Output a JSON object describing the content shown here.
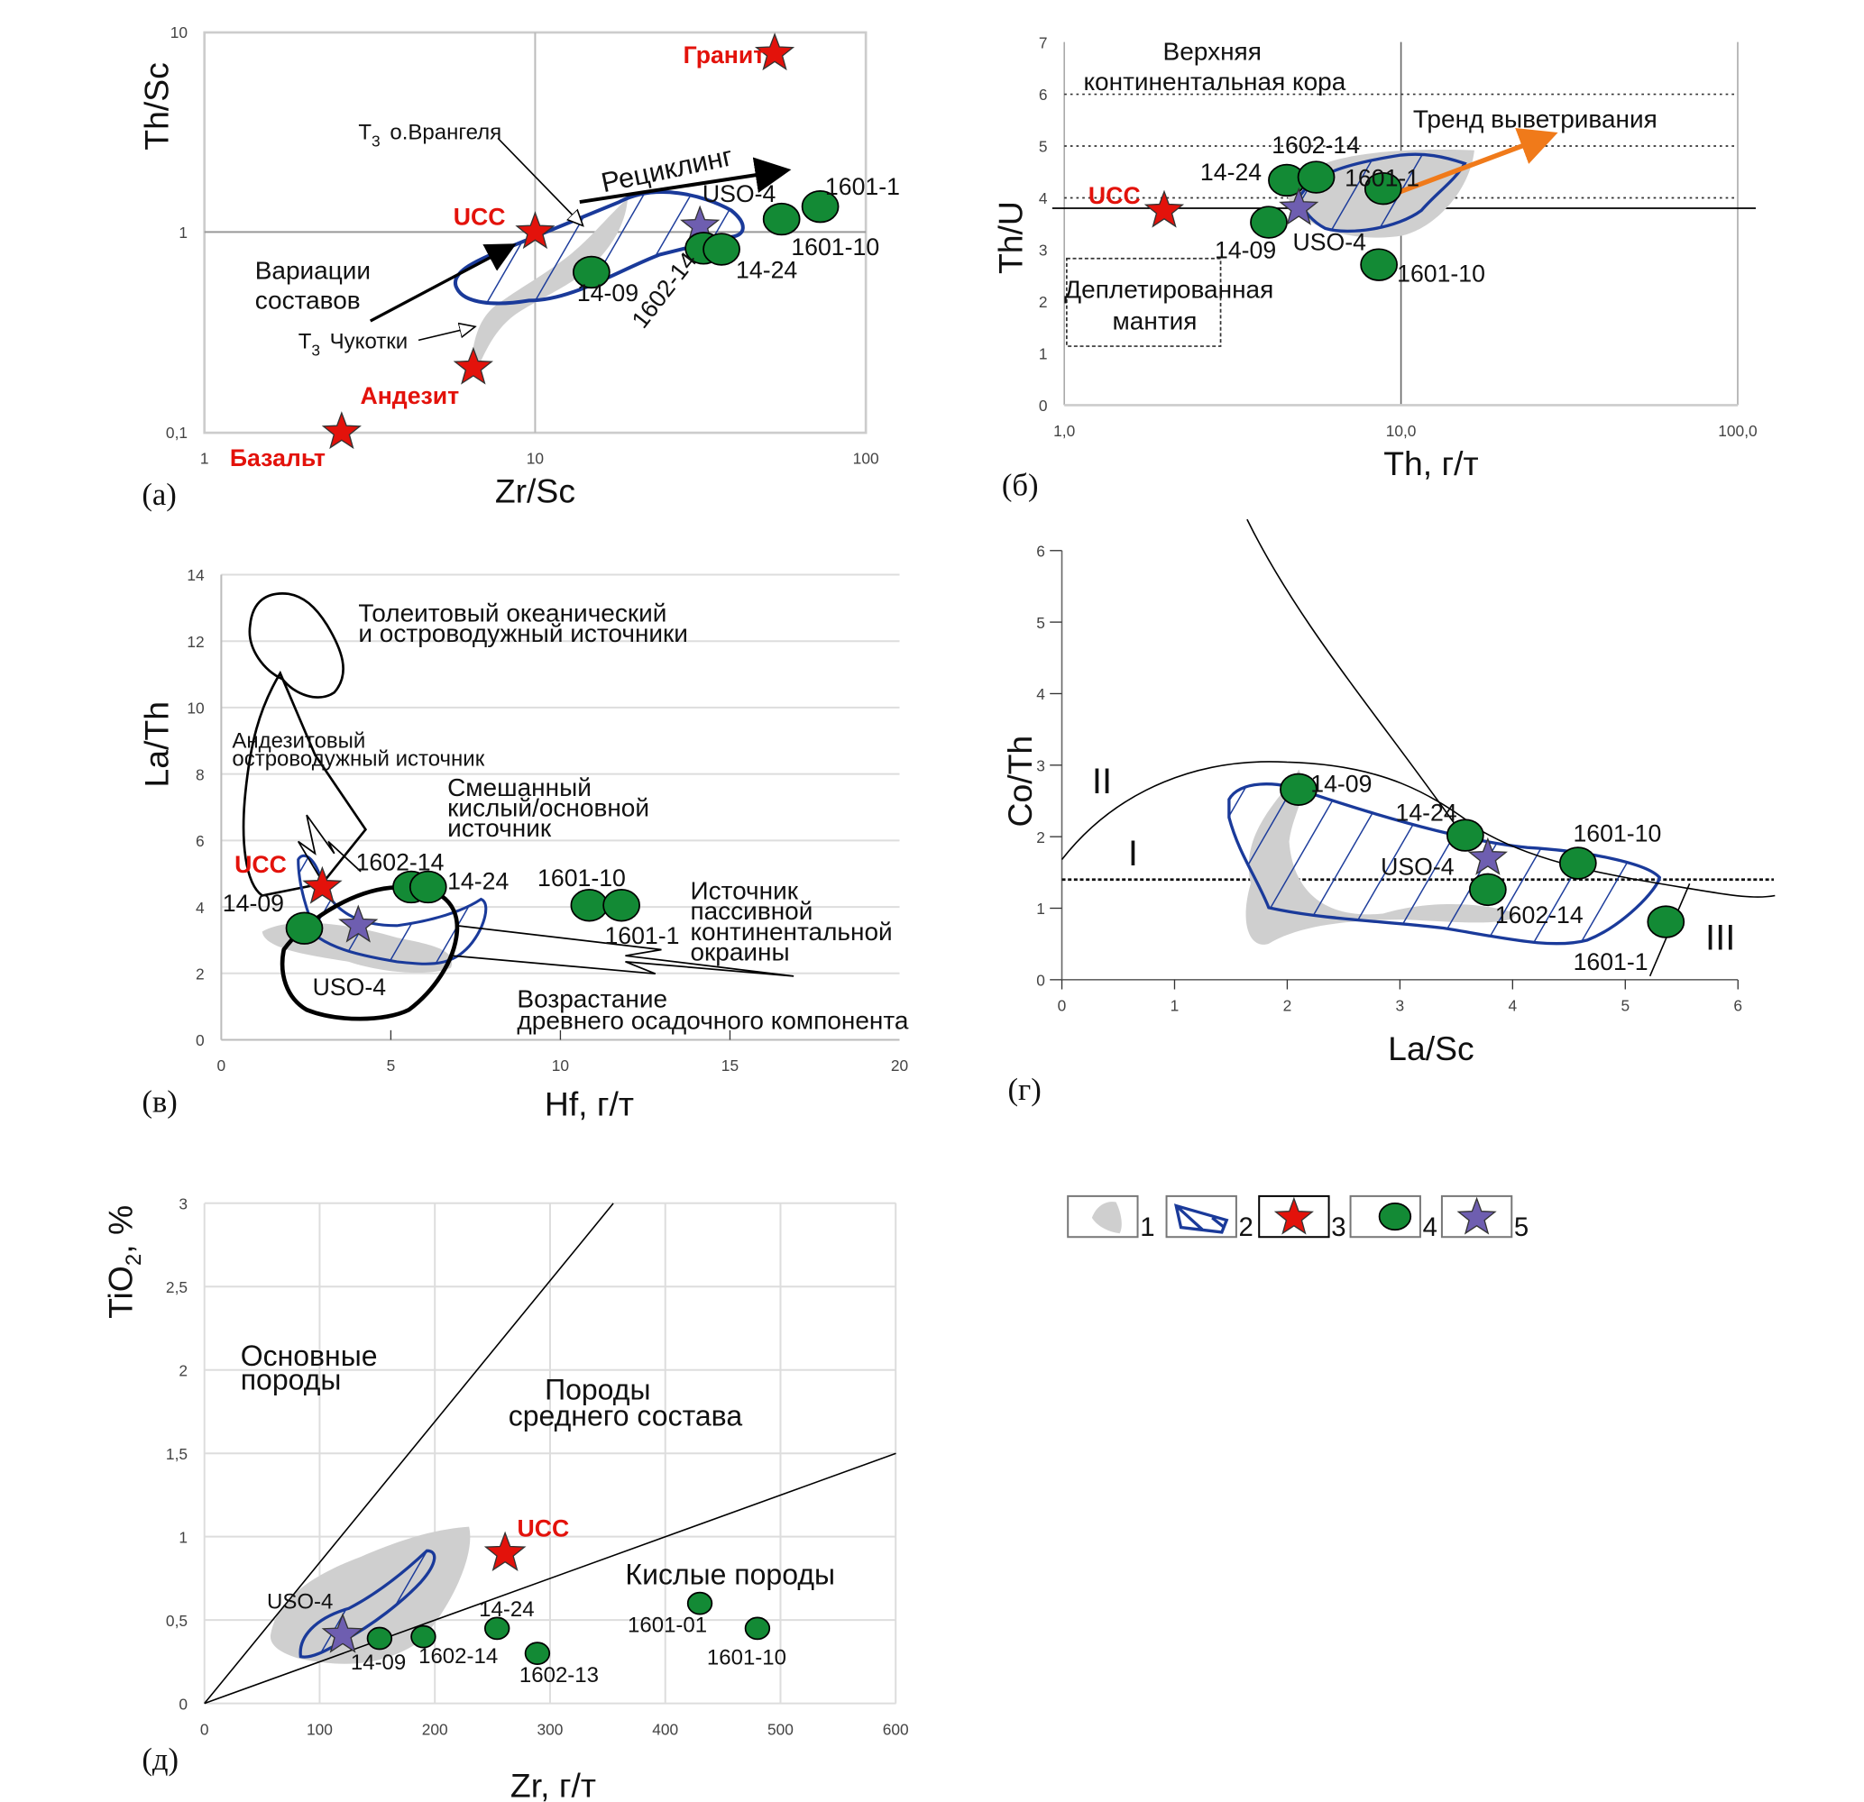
{
  "colors": {
    "sample": "#138a35",
    "reference": "#e3120b",
    "uso": "#6e5eb0",
    "field_gray": "#cfcfcf",
    "field_blue": "#1a3a9a",
    "trend": "#f07a1a"
  },
  "legend": {
    "items": [
      {
        "num": "1",
        "symbol": "gray-field"
      },
      {
        "num": "2",
        "symbol": "blue-hatched-field"
      },
      {
        "num": "3",
        "symbol": "red-star"
      },
      {
        "num": "4",
        "symbol": "green-circle"
      },
      {
        "num": "5",
        "symbol": "purple-star"
      }
    ]
  },
  "chart_data": [
    {
      "type": "scatter",
      "panel": "(а)",
      "xlabel": "Zr/Sc",
      "ylabel": "Th/Sc",
      "xscale": "log",
      "yscale": "log",
      "xlim": [
        1,
        100
      ],
      "ylim": [
        0.1,
        10
      ],
      "grid": "major lines at 10 and 1",
      "xticks": [
        {
          "v": 1,
          "label": "1"
        },
        {
          "v": 10,
          "label": "10"
        },
        {
          "v": 100,
          "label": "100"
        }
      ],
      "yticks": [
        {
          "v": 0.1,
          "label": "0,1"
        },
        {
          "v": 1,
          "label": "1"
        },
        {
          "v": 10,
          "label": "10"
        }
      ],
      "points": [
        {
          "label": "Гранит",
          "kind": "reference",
          "x": 53,
          "y": 7.8
        },
        {
          "label": "UCC",
          "kind": "reference",
          "x": 10,
          "y": 1.0
        },
        {
          "label": "Андезит",
          "kind": "reference",
          "x": 6.5,
          "y": 0.21
        },
        {
          "label": "Базальт",
          "kind": "reference",
          "x": 2.6,
          "y": 0.1
        },
        {
          "label": "USO-4",
          "kind": "uso",
          "x": 31.5,
          "y": 1.07
        },
        {
          "label": "14-09",
          "kind": "sample",
          "x": 14.8,
          "y": 0.63
        },
        {
          "label": "1602-14",
          "kind": "sample",
          "x": 32.3,
          "y": 0.83
        },
        {
          "label": "14-24",
          "kind": "sample",
          "x": 36.6,
          "y": 0.82
        },
        {
          "label": "1601-10",
          "kind": "sample",
          "x": 55.6,
          "y": 1.16
        },
        {
          "label": "1601-1",
          "kind": "sample",
          "x": 72.8,
          "y": 1.34
        }
      ],
      "annotations": {
        "wrangel_t": "T",
        "wrangel_sub": "3",
        "wrangel": "о.Врангеля",
        "chukotka_t": "T",
        "chukotka_sub": "3",
        "chukotka": "Чукотки",
        "recycling": "Рециклинг",
        "variations_1": "Вариации",
        "variations_2": "составов"
      }
    },
    {
      "type": "scatter",
      "panel": "(б)",
      "xlabel": "Th, г/т",
      "ylabel": "Th/U",
      "xscale": "log",
      "yscale": "linear",
      "xlim": [
        1,
        100
      ],
      "ylim": [
        0,
        7
      ],
      "grid": "vertical lines at 1, 10, 100; dotted at 4, 5, 6; solid reference at 3.8",
      "reference_line": 3.8,
      "xticks": [
        {
          "v": 1,
          "label": "1,0"
        },
        {
          "v": 10,
          "label": "10,0"
        },
        {
          "v": 100,
          "label": "100,0"
        }
      ],
      "yticks": [
        {
          "v": 0,
          "label": "0"
        },
        {
          "v": 1,
          "label": "1"
        },
        {
          "v": 2,
          "label": "2"
        },
        {
          "v": 3,
          "label": "3"
        },
        {
          "v": 4,
          "label": "4"
        },
        {
          "v": 5,
          "label": "5"
        },
        {
          "v": 6,
          "label": "6"
        },
        {
          "v": 7,
          "label": "7"
        }
      ],
      "points": [
        {
          "label": "UCC",
          "kind": "reference",
          "x": 1.98,
          "y": 3.75
        },
        {
          "label": "14-24",
          "kind": "sample",
          "x": 4.58,
          "y": 4.34
        },
        {
          "label": "1602-14",
          "kind": "sample",
          "x": 5.6,
          "y": 4.4
        },
        {
          "label": "1601-1",
          "kind": "sample",
          "x": 8.85,
          "y": 4.18
        },
        {
          "label": "14-09",
          "kind": "sample",
          "x": 4.05,
          "y": 3.53
        },
        {
          "label": "USO-4",
          "kind": "uso",
          "x": 4.97,
          "y": 3.8
        },
        {
          "label": "1601-10",
          "kind": "sample",
          "x": 8.6,
          "y": 2.71
        }
      ],
      "annotations": {
        "ucc_1": "Верхняя",
        "ucc_2": "континентальная кора",
        "weathering": "Тренд выветривания",
        "mantle_1": "Деплетированная",
        "mantle_2": "мантия"
      }
    },
    {
      "type": "scatter",
      "panel": "(в)",
      "xlabel": "Hf, г/т",
      "ylabel": "La/Th",
      "xscale": "linear",
      "yscale": "linear",
      "xlim": [
        0,
        20
      ],
      "ylim": [
        0,
        14
      ],
      "grid": "horizontal",
      "xticks": [
        {
          "v": 0,
          "label": "0"
        },
        {
          "v": 5,
          "label": "5"
        },
        {
          "v": 10,
          "label": "10"
        },
        {
          "v": 15,
          "label": "15"
        },
        {
          "v": 20,
          "label": "20"
        }
      ],
      "yticks": [
        {
          "v": 0,
          "label": "0"
        },
        {
          "v": 2,
          "label": "2"
        },
        {
          "v": 4,
          "label": "4"
        },
        {
          "v": 6,
          "label": "6"
        },
        {
          "v": 8,
          "label": "8"
        },
        {
          "v": 10,
          "label": "10"
        },
        {
          "v": 12,
          "label": "12"
        },
        {
          "v": 14,
          "label": "14"
        }
      ],
      "points": [
        {
          "label": "UCC",
          "kind": "reference",
          "x": 2.98,
          "y": 4.6
        },
        {
          "label": "14-09",
          "kind": "sample",
          "x": 2.45,
          "y": 3.36
        },
        {
          "label": "USO-4",
          "kind": "uso",
          "x": 4.04,
          "y": 3.44
        },
        {
          "label": "1602-14",
          "kind": "sample",
          "x": 5.6,
          "y": 4.6
        },
        {
          "label": "14-24",
          "kind": "sample",
          "x": 6.1,
          "y": 4.6
        },
        {
          "label": "1601-10",
          "kind": "sample",
          "x": 10.85,
          "y": 4.05
        },
        {
          "label": "1601-1",
          "kind": "sample",
          "x": 11.8,
          "y": 4.05
        }
      ],
      "annotations": {
        "thol_1": "Толеитовый океанический",
        "thol_2": "и островодужный источники",
        "and_1": "Андезитовый",
        "and_2": "островодужный источник",
        "mix_1": "Смешанный",
        "mix_2": "кислый/основной",
        "mix_3": "источник",
        "pass_1": "Источник",
        "pass_2": "пассивной",
        "pass_3": "континентальной",
        "pass_4": "окраины",
        "old_1": "Возрастание",
        "old_2": "древнего осадочного компонента"
      }
    },
    {
      "type": "scatter",
      "panel": "(г)",
      "xlabel": "La/Sc",
      "ylabel": "Co/Th",
      "xscale": "linear",
      "yscale": "linear",
      "xlim": [
        0,
        6
      ],
      "ylim": [
        0,
        6
      ],
      "grid": "none",
      "reference_line": 1.4,
      "xticks": [
        {
          "v": 0,
          "label": "0"
        },
        {
          "v": 1,
          "label": "1"
        },
        {
          "v": 2,
          "label": "2"
        },
        {
          "v": 3,
          "label": "3"
        },
        {
          "v": 4,
          "label": "4"
        },
        {
          "v": 5,
          "label": "5"
        },
        {
          "v": 6,
          "label": "6"
        }
      ],
      "yticks": [
        {
          "v": 0,
          "label": "0"
        },
        {
          "v": 1,
          "label": "1"
        },
        {
          "v": 2,
          "label": "2"
        },
        {
          "v": 3,
          "label": "3"
        },
        {
          "v": 4,
          "label": "4"
        },
        {
          "v": 5,
          "label": "5"
        },
        {
          "v": 6,
          "label": "6"
        }
      ],
      "points": [
        {
          "label": "14-09",
          "kind": "sample",
          "x": 2.1,
          "y": 2.66
        },
        {
          "label": "14-24",
          "kind": "sample",
          "x": 3.58,
          "y": 2.02
        },
        {
          "label": "USO-4",
          "kind": "uso",
          "x": 3.78,
          "y": 1.7
        },
        {
          "label": "1602-14",
          "kind": "sample",
          "x": 3.78,
          "y": 1.26
        },
        {
          "label": "1601-10",
          "kind": "sample",
          "x": 4.58,
          "y": 1.63
        },
        {
          "label": "1601-1",
          "kind": "sample",
          "x": 5.36,
          "y": 0.81
        }
      ],
      "annotations": {
        "field_2": "II",
        "field_1": "I",
        "field_3": "III"
      }
    },
    {
      "type": "scatter",
      "panel": "(д)",
      "xlabel": "Zr, г/т",
      "ylabel_main": "TiO",
      "ylabel_sub": "2",
      "ylabel_unit": ", %",
      "xscale": "linear",
      "yscale": "linear",
      "xlim": [
        0,
        600
      ],
      "ylim": [
        0,
        3
      ],
      "grid": "both",
      "xticks": [
        {
          "v": 0,
          "label": "0"
        },
        {
          "v": 100,
          "label": "100"
        },
        {
          "v": 200,
          "label": "200"
        },
        {
          "v": 300,
          "label": "300"
        },
        {
          "v": 400,
          "label": "400"
        },
        {
          "v": 500,
          "label": "500"
        },
        {
          "v": 600,
          "label": "600"
        }
      ],
      "yticks": [
        {
          "v": 0,
          "label": "0"
        },
        {
          "v": 0.5,
          "label": "0,5"
        },
        {
          "v": 1,
          "label": "1"
        },
        {
          "v": 1.5,
          "label": "1,5"
        },
        {
          "v": 2,
          "label": "2"
        },
        {
          "v": 2.5,
          "label": "2,5"
        },
        {
          "v": 3,
          "label": "3"
        }
      ],
      "points": [
        {
          "label": "UCC",
          "kind": "reference",
          "x": 261,
          "y": 0.9
        },
        {
          "label": "USO-4",
          "kind": "uso",
          "x": 120,
          "y": 0.41
        },
        {
          "label": "14-09",
          "kind": "sample",
          "x": 152,
          "y": 0.39
        },
        {
          "label": "1602-14",
          "kind": "sample",
          "x": 190,
          "y": 0.4
        },
        {
          "label": "14-24",
          "kind": "sample",
          "x": 254,
          "y": 0.45
        },
        {
          "label": "1602-13",
          "kind": "sample",
          "x": 289,
          "y": 0.3
        },
        {
          "label": "1601-01",
          "kind": "sample",
          "x": 430,
          "y": 0.6
        },
        {
          "label": "1601-10",
          "kind": "sample",
          "x": 480,
          "y": 0.45
        }
      ],
      "annotations": {
        "basic_1": "Основные",
        "basic_2": "породы",
        "inter_1": "Породы",
        "inter_2": "среднего состава",
        "acid": "Кислые породы"
      }
    }
  ]
}
